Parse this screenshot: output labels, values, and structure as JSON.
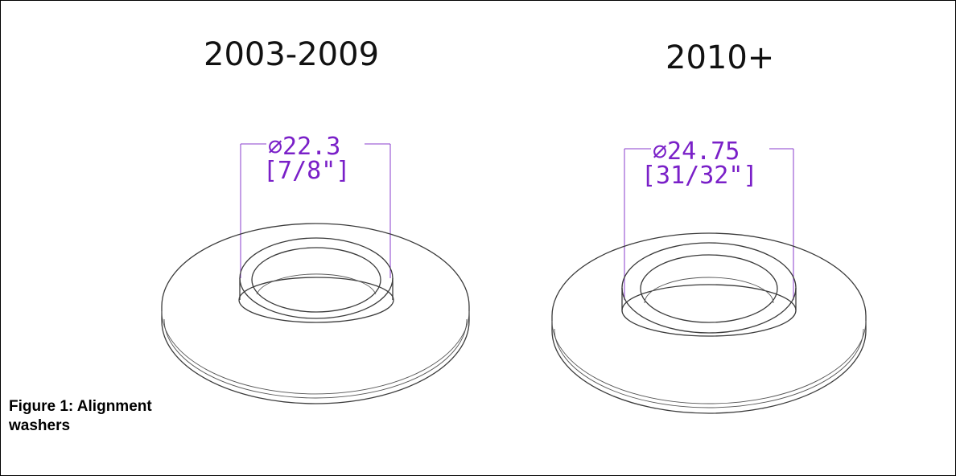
{
  "figure": {
    "caption": "Figure 1: Alignment washers",
    "caption_line1": "Figure 1: Alignment",
    "caption_line2": "washers"
  },
  "washers": [
    {
      "title": "2003-2009",
      "dimension_mm": "∅22.3",
      "dimension_in": "[7/8\"]"
    },
    {
      "title": "2010+",
      "dimension_mm": "∅24.75",
      "dimension_in": "[31/32\"]"
    }
  ],
  "colors": {
    "dimension": "#7a20c8",
    "linework": "#3a3a3a",
    "border": "#000000"
  }
}
